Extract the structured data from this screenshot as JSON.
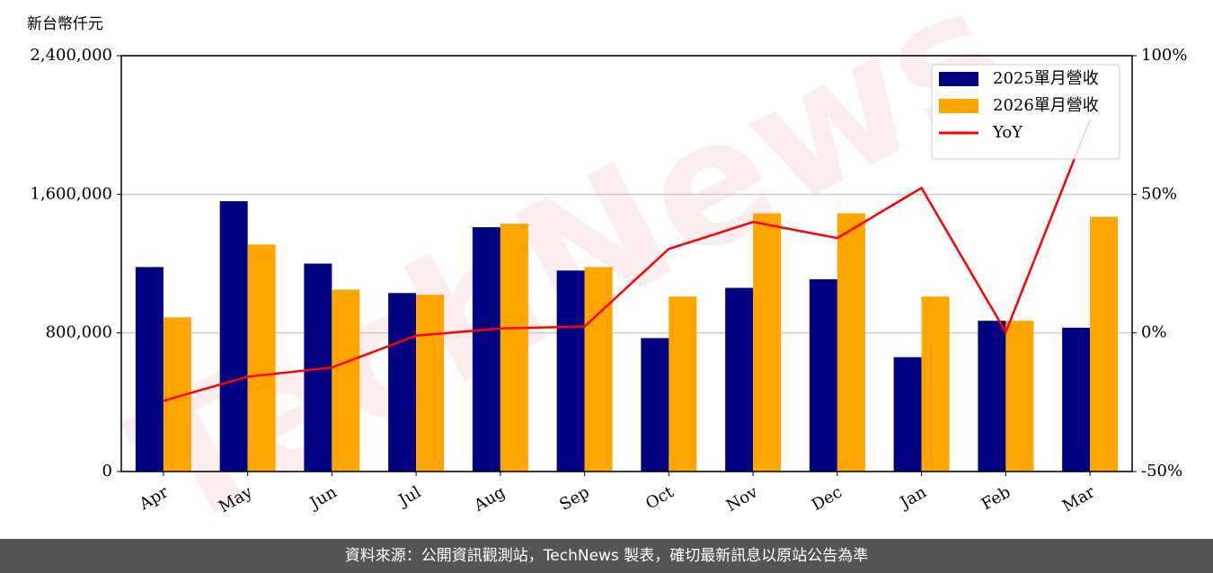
{
  "chart_data": {
    "type": "bar",
    "y_label": "新台幣仟元",
    "watermark": "TechNews",
    "source": "資料來源：公開資訊觀測站，TechNews 製表，確切最新訊息以原站公告為準",
    "categories": [
      "Apr",
      "May",
      "Jun",
      "Jul",
      "Aug",
      "Sep",
      "Oct",
      "Nov",
      "Dec",
      "Jan",
      "Feb",
      "Mar"
    ],
    "series": [
      {
        "name": "2025單月營收",
        "color": "#000080",
        "type": "bar",
        "values": [
          1180000,
          1560000,
          1200000,
          1030000,
          1410000,
          1160000,
          770000,
          1060000,
          1110000,
          660000,
          870000,
          830000
        ]
      },
      {
        "name": "2026單月營收",
        "color": "#ffa500",
        "type": "bar",
        "values": [
          890000,
          1310000,
          1050000,
          1020000,
          1430000,
          1180000,
          1010000,
          1490000,
          1490000,
          1010000,
          870000,
          1470000
        ]
      },
      {
        "name": "YoY",
        "color": "#ff0000",
        "type": "line",
        "axis": "y2",
        "values": [
          -24.5,
          -15.8,
          -12.5,
          -1,
          1.6,
          2.3,
          30.3,
          40,
          34.2,
          52.3,
          0.3,
          77
        ]
      }
    ],
    "ylim": [
      0,
      2400000
    ],
    "yticks": [
      {
        "value": 0,
        "label": "0"
      },
      {
        "value": 800000,
        "label": "800,000"
      },
      {
        "value": 1600000,
        "label": "1,600,000"
      },
      {
        "value": 2400000,
        "label": "2,400,000"
      }
    ],
    "y2lim": [
      -50,
      100
    ],
    "y2ticks": [
      {
        "value": -50,
        "label": "-50%"
      },
      {
        "value": 0,
        "label": "0%"
      },
      {
        "value": 50,
        "label": "50%"
      },
      {
        "value": 100,
        "label": "100%"
      }
    ],
    "grid": true,
    "legend": "upper right"
  }
}
